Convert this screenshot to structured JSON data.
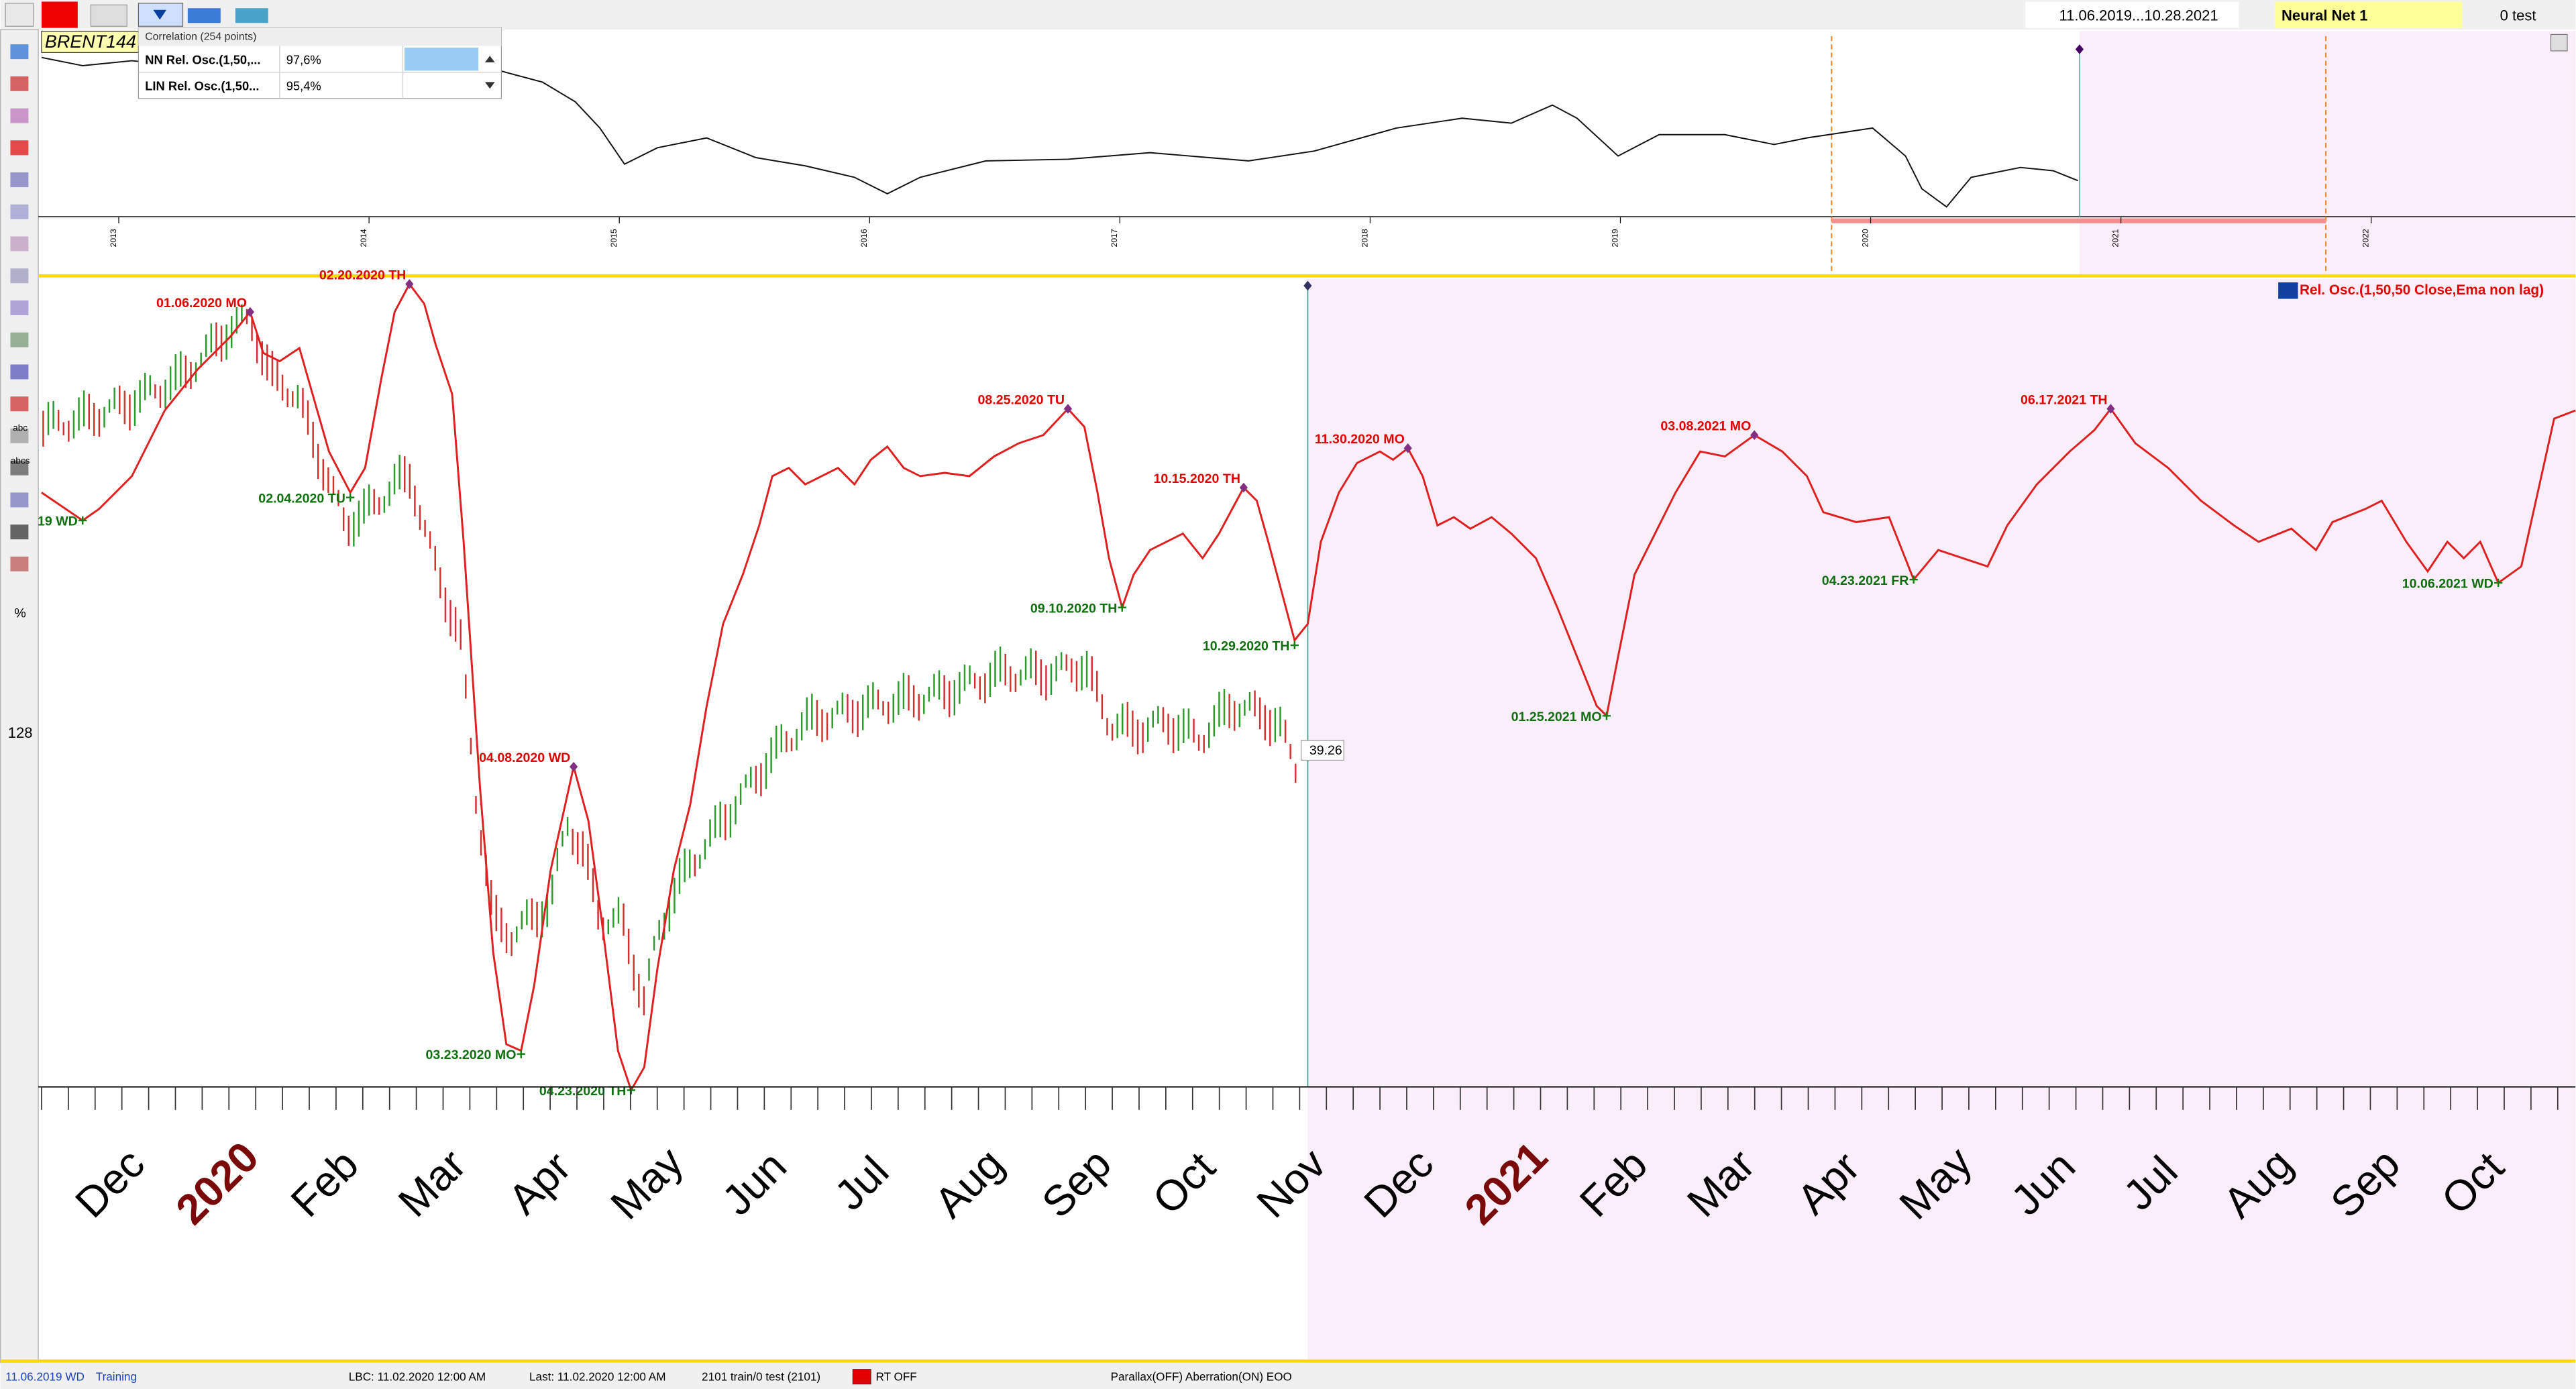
{
  "toolbar": {
    "date_range": "11.06.2019...10.28.2021",
    "model": "Neural Net  1",
    "test": "0 test"
  },
  "sidebar": {
    "labels": [
      "abc",
      "abcs",
      "%",
      "128"
    ]
  },
  "overview": {
    "symbol": "BRENT144",
    "correlation": {
      "title": "Correlation (254 points)",
      "rows": [
        [
          "NN Rel. Osc.(1,50,...",
          "97,6%"
        ],
        [
          "LIN Rel. Osc.(1,50...",
          "95,4%"
        ]
      ]
    },
    "years": [
      "2013",
      "2014",
      "2015",
      "2016",
      "2017",
      "2018",
      "2019",
      "2020",
      "2021",
      "2022"
    ]
  },
  "main": {
    "legend": "Rel. Osc.(1,50,50 Close,Ema non lag)",
    "last_price": "39.26",
    "peaks": [
      "01.06.2020 MO",
      "02.20.2020 TH",
      "04.08.2020 WD",
      "08.25.2020 TU",
      "10.15.2020 TH",
      "11.30.2020 MO",
      "03.08.2021 MO",
      "06.17.2021 TH"
    ],
    "troughs": [
      "19 WD",
      "02.04.2020 TU",
      "03.23.2020 MO",
      "04.23.2020 TH",
      "09.10.2020 TH",
      "10.29.2020 TH",
      "01.25.2021 MO",
      "04.23.2021 FR",
      "10.06.2021 WD"
    ],
    "months": [
      "Dec",
      "2020",
      "Feb",
      "Mar",
      "Apr",
      "May",
      "Jun",
      "Jul",
      "Aug",
      "Sep",
      "Oct",
      "Nov",
      "Dec",
      "2021",
      "Feb",
      "Mar",
      "Apr",
      "May",
      "Jun",
      "Jul",
      "Aug",
      "Sep",
      "Oct"
    ]
  },
  "status": {
    "date": "11.06.2019 WD",
    "mode": "Training",
    "lbc": "LBC: 11.02.2020  12:00 AM",
    "last": "Last: 11.02.2020  12:00 AM",
    "counts": "2101 train/0 test (2101)",
    "rt": "RT OFF",
    "flags": "Parallax(OFF) Aberration(ON) EOO"
  }
}
